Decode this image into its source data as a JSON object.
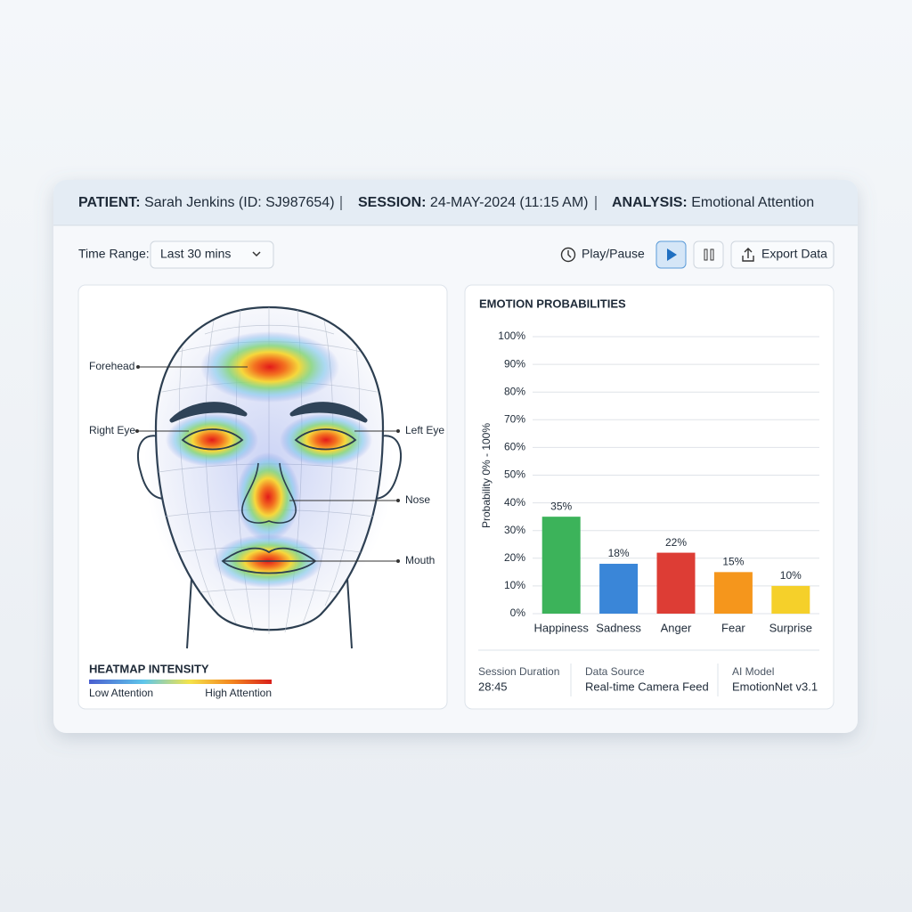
{
  "header": {
    "patient_label": "PATIENT:",
    "patient": "Sarah Jenkins (ID: SJ987654)",
    "session_label": "SESSION:",
    "session": "24-MAY-2024 (11:15 AM)",
    "analysis_label": "ANALYSIS:",
    "analysis": "Emotional Attention"
  },
  "controls": {
    "time_range_label": "Time Range:",
    "time_range": "Last 30 mins",
    "play_pause": "Play/Pause",
    "export": "Export Data"
  },
  "heatmap": {
    "labels": [
      "Forehead",
      "Right Eye",
      "Left Eye",
      "Nose",
      "Mouth"
    ],
    "legend_title": "HEATMAP INTENSITY",
    "legend_low": "Low Attention",
    "legend_high": "High Attention"
  },
  "chart_data": {
    "type": "bar",
    "title": "EMOTION PROBABILITIES",
    "y_label": "Probability 0% - 100%",
    "categories": [
      "Happiness",
      "Sadness",
      "Anger",
      "Fear",
      "Surprise"
    ],
    "values": [
      35,
      18,
      22,
      15,
      10
    ],
    "value_labels": [
      "35%",
      "18%",
      "22%",
      "15%",
      "10%"
    ],
    "colors": [
      "#3cb35a",
      "#3a86d8",
      "#dd3d35",
      "#f5961c",
      "#f5d02a"
    ],
    "ylim": [
      0,
      100
    ],
    "yticks": [
      {
        "value": 0,
        "label": "0%"
      },
      {
        "value": 10,
        "label": "10%"
      },
      {
        "value": 20,
        "label": "20%"
      },
      {
        "value": 30,
        "label": "30%"
      },
      {
        "value": 40,
        "label": "40%"
      },
      {
        "value": 50,
        "label": "50%"
      },
      {
        "value": 60,
        "label": "60%"
      },
      {
        "value": 70,
        "label": "70%"
      },
      {
        "value": 80,
        "label": "80%"
      },
      {
        "value": 90,
        "label": "90%"
      },
      {
        "value": 100,
        "label": "100%"
      }
    ],
    "grid": true
  },
  "footer": [
    {
      "label": "Session Duration",
      "value": "28:45"
    },
    {
      "label": "Data Source",
      "value": "Real-time Camera Feed"
    },
    {
      "label": "AI Model",
      "value": "EmotionNet v3.1"
    }
  ]
}
